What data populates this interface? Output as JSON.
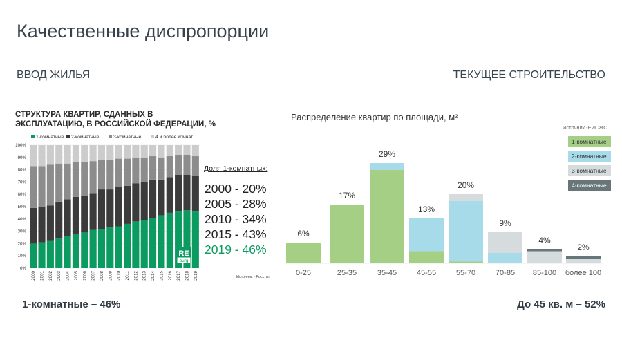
{
  "slide": {
    "title": "Качественные диспропорции",
    "left_section": "ВВОД ЖИЛЬЯ",
    "right_section": "ТЕКУЩЕЕ СТРОИТЕЛЬСТВО",
    "left_summary": "1-комнатные – 46%",
    "right_summary": "До 45 кв. м – 52%"
  },
  "share_block": {
    "heading": "Доля 1-комнатных:",
    "rows": [
      "2000 - 20%",
      "2005 - 28%",
      "2010 - 34%",
      "2015 - 43%",
      "2019 - 46%"
    ]
  },
  "logo": {
    "line1": "RE",
    "line2": "burg",
    "color": "#0b9b60"
  },
  "chart_data": [
    {
      "type": "bar",
      "stacked": true,
      "title": "СТРУКТУРА КВАРТИР, СДАННЫХ В ЭКСПЛУАТАЦИЮ, В РОССИЙСКОЙ ФЕДЕРАЦИИ, %",
      "source": "Источник - Росстат",
      "categories": [
        "2000",
        "2001",
        "2002",
        "2003",
        "2004",
        "2005",
        "2006",
        "2007",
        "2008",
        "2009",
        "2010",
        "2011",
        "2012",
        "2013",
        "2014",
        "2015",
        "2016",
        "2017",
        "2018",
        "2019"
      ],
      "ylim": [
        0,
        100
      ],
      "yticks": [
        "0%",
        "10%",
        "20%",
        "30%",
        "40%",
        "50%",
        "60%",
        "70%",
        "80%",
        "90%",
        "100%"
      ],
      "legend_position": "top",
      "series": [
        {
          "name": "1-комнатные",
          "color": "#0b9b60",
          "values": [
            20,
            21,
            22,
            24,
            26,
            28,
            29,
            31,
            32,
            33,
            34,
            36,
            38,
            39,
            41,
            43,
            45,
            46,
            47,
            46
          ]
        },
        {
          "name": "2-комнатные",
          "color": "#3b3b3b",
          "values": [
            29,
            29,
            29,
            30,
            30,
            30,
            30,
            30,
            32,
            31,
            32,
            31,
            31,
            31,
            31,
            29,
            29,
            30,
            29,
            29
          ]
        },
        {
          "name": "3-комнатные",
          "color": "#8c8c8c",
          "values": [
            34,
            33,
            33,
            31,
            29,
            28,
            27,
            26,
            24,
            24,
            23,
            22,
            21,
            20,
            19,
            18,
            17,
            16,
            16,
            16
          ]
        },
        {
          "name": "4 и более комнат",
          "color": "#cccccc",
          "values": [
            17,
            17,
            16,
            15,
            15,
            14,
            14,
            13,
            12,
            12,
            11,
            11,
            10,
            10,
            9,
            10,
            9,
            8,
            8,
            9
          ]
        }
      ]
    },
    {
      "type": "bar",
      "stacked": true,
      "title": "Распределение квартир по площади, м²",
      "source": "Источник -ЕИСЖС",
      "categories": [
        "0-25",
        "25-35",
        "35-45",
        "45-55",
        "55-70",
        "70-85",
        "85-100",
        "более 100"
      ],
      "totals": [
        "6%",
        "17%",
        "29%",
        "13%",
        "20%",
        "9%",
        "4%",
        "2%"
      ],
      "legend_position": "right",
      "series": [
        {
          "name": "1-комнатные",
          "color": "#a5cf85",
          "values": [
            6,
            17,
            27,
            3.5,
            0.5,
            0,
            0,
            0
          ]
        },
        {
          "name": "2-комнатные",
          "color": "#a8dbea",
          "values": [
            0,
            0,
            2,
            9.5,
            17.5,
            3,
            0,
            0
          ]
        },
        {
          "name": "3-комнатные",
          "color": "#d6dcdd",
          "values": [
            0,
            0,
            0,
            0,
            2,
            6,
            3.5,
            1.2
          ]
        },
        {
          "name": "4-комнатные",
          "color": "#68767a",
          "values": [
            0,
            0,
            0,
            0,
            0,
            0,
            0.5,
            0.8
          ]
        }
      ]
    }
  ]
}
